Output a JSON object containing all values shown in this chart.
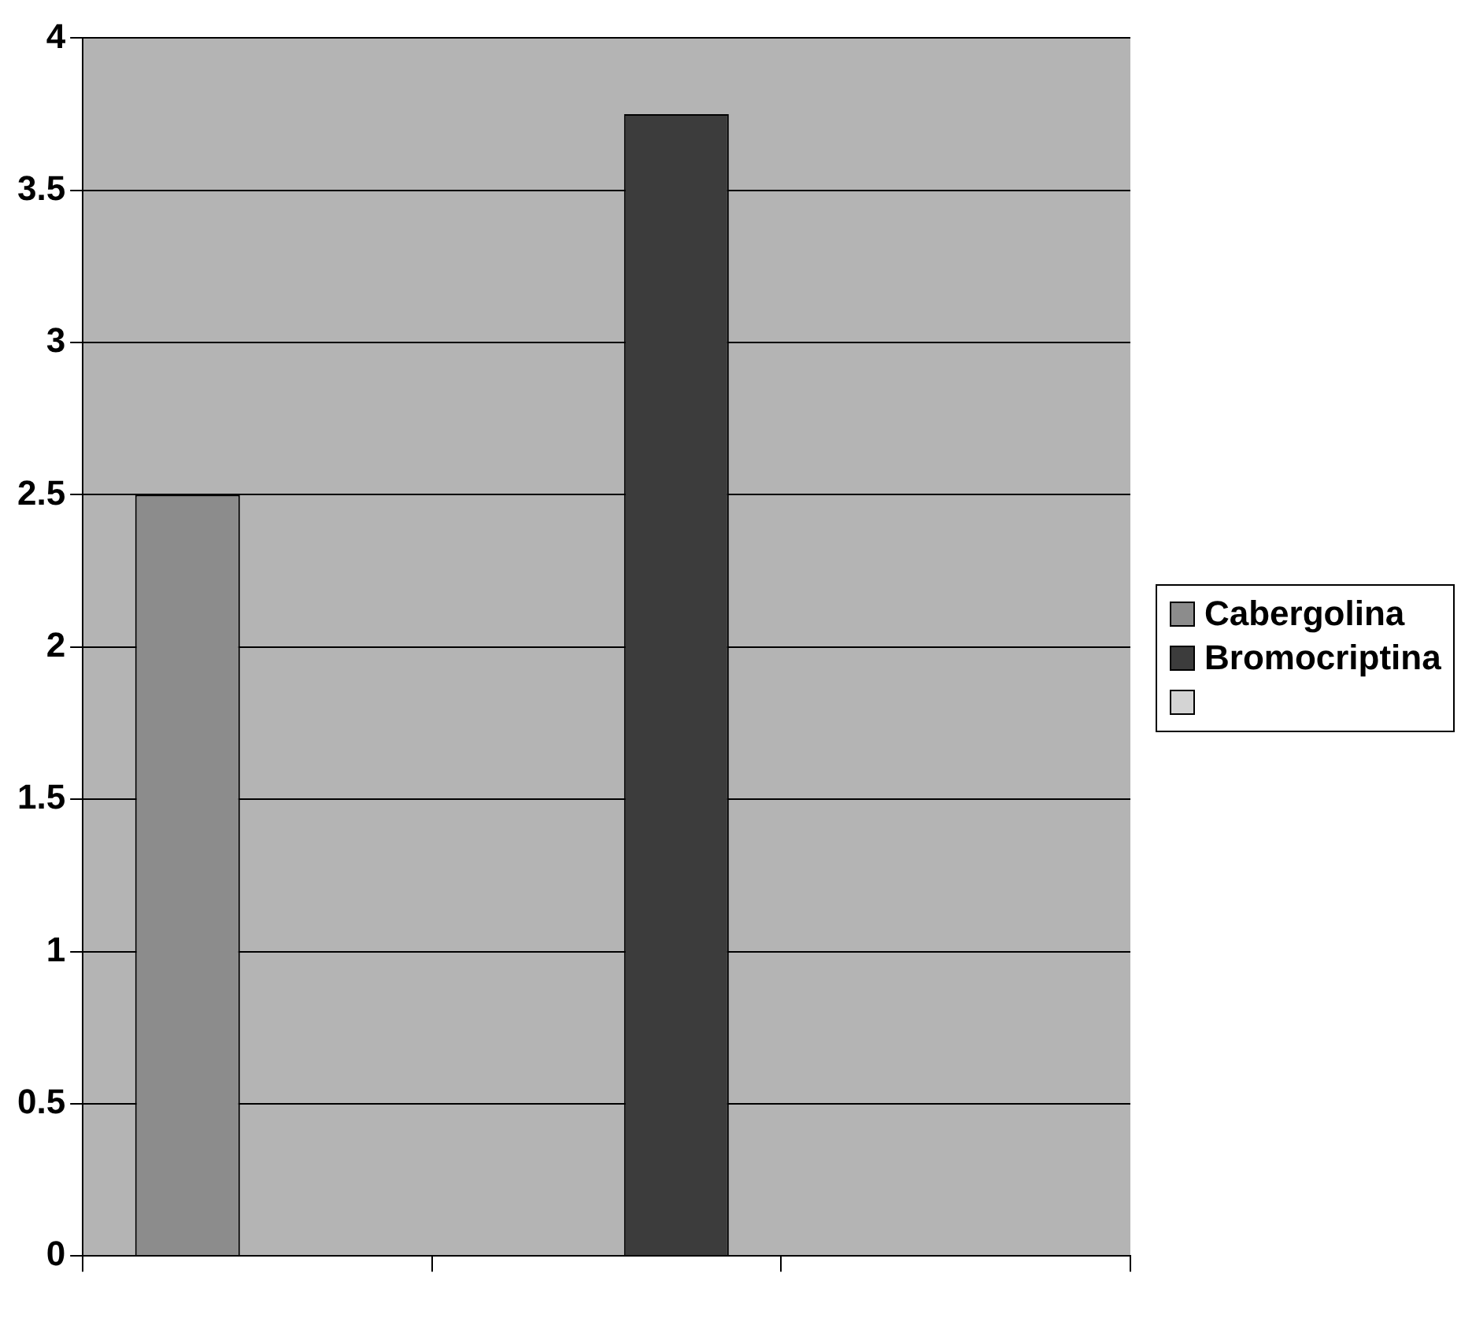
{
  "chart_data": {
    "type": "bar",
    "categories": [
      null,
      null,
      null
    ],
    "series": [
      {
        "name": "Cabergolina",
        "color": "#8c8c8c",
        "values": [
          2.5,
          null,
          null
        ]
      },
      {
        "name": "Bromocriptina",
        "color": "#3c3c3c",
        "values": [
          null,
          3.75,
          null
        ]
      }
    ],
    "ylim": [
      0,
      4
    ],
    "yticks": [
      0,
      0.5,
      1,
      1.5,
      2,
      2.5,
      3,
      3.5,
      4
    ],
    "grid": "y",
    "legend": "right"
  }
}
